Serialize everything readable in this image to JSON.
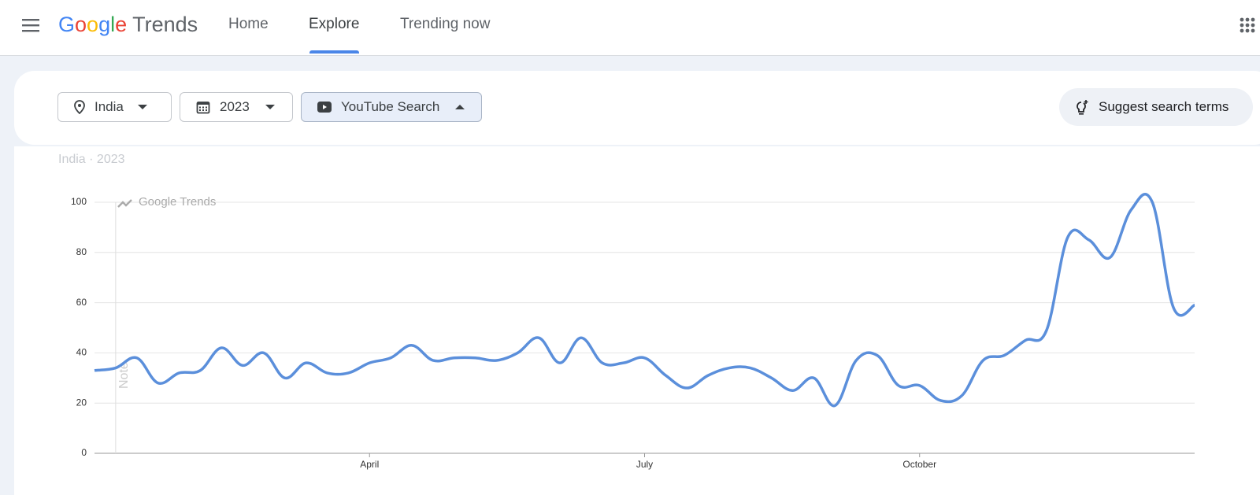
{
  "header": {
    "logo": "Google",
    "product": "Trends",
    "nav": [
      "Home",
      "Explore",
      "Trending now"
    ],
    "active_nav": 1
  },
  "filters": {
    "location": "India",
    "period": "2023",
    "property": "YouTube Search",
    "suggest": "Suggest search terms"
  },
  "chart_data": {
    "type": "line",
    "subtitle": "India · 2023",
    "watermark": "Google Trends",
    "annotation": "Note",
    "annotation_index": 1,
    "categories": [
      null,
      null,
      null,
      null,
      null,
      null,
      null,
      null,
      null,
      null,
      null,
      null,
      null,
      "April",
      null,
      null,
      null,
      null,
      null,
      null,
      null,
      null,
      null,
      null,
      null,
      null,
      "July",
      null,
      null,
      null,
      null,
      null,
      null,
      null,
      null,
      null,
      null,
      null,
      null,
      "October",
      null,
      null,
      null,
      null,
      null,
      null,
      null,
      null,
      null,
      null,
      null,
      null,
      null
    ],
    "values": [
      33,
      34,
      38,
      28,
      32,
      33,
      42,
      35,
      40,
      30,
      36,
      32,
      32,
      36,
      38,
      43,
      37,
      38,
      38,
      37,
      40,
      46,
      36,
      46,
      36,
      36,
      38,
      31,
      26,
      31,
      34,
      34,
      30,
      25,
      30,
      19,
      37,
      39,
      27,
      27,
      21,
      23,
      37,
      39,
      45,
      49,
      86,
      85,
      78,
      97,
      100,
      58,
      59
    ],
    "color": "#5b8fdb",
    "ylim": [
      0,
      100
    ],
    "yticks": [
      0,
      20,
      40,
      60,
      80,
      100
    ],
    "grid": true
  }
}
